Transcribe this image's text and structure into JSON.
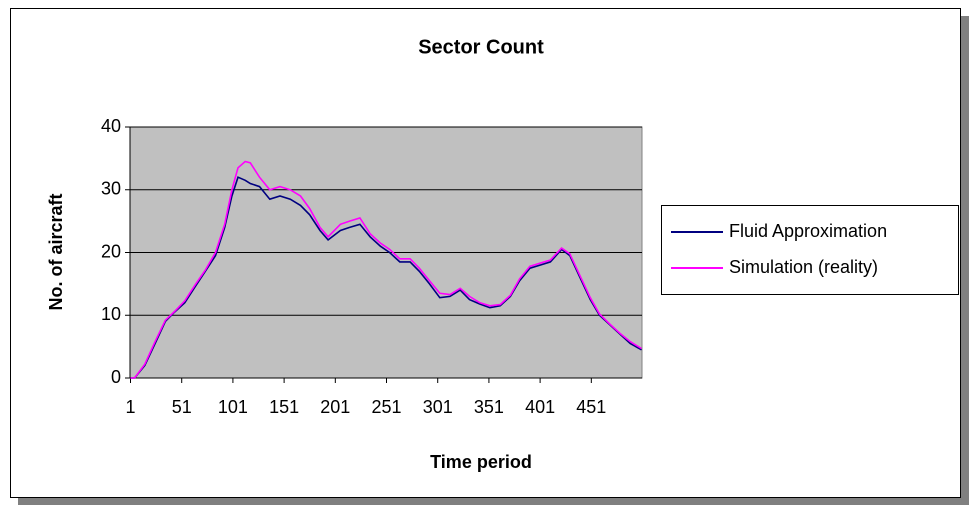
{
  "chart_data": {
    "type": "line",
    "title": "Sector Count",
    "x_label": "Time period",
    "y_label": "No. of aircraft",
    "x": [
      1,
      5,
      15,
      25,
      35,
      44,
      54,
      64,
      74,
      84,
      93,
      100,
      106,
      113,
      118,
      127,
      137,
      147,
      157,
      167,
      176,
      186,
      194,
      206,
      215,
      225,
      235,
      245,
      254,
      264,
      274,
      283,
      293,
      303,
      313,
      323,
      332,
      342,
      352,
      362,
      372,
      381,
      391,
      401,
      411,
      422,
      430,
      440,
      450,
      459,
      469,
      479,
      489,
      500
    ],
    "series": [
      {
        "name": "Fluid Approximation",
        "color": "#000080",
        "values": [
          0,
          0,
          2,
          5.5,
          9,
          10.5,
          12,
          14.5,
          17,
          19.5,
          24,
          29,
          32,
          31.5,
          31,
          30.5,
          28.5,
          29,
          28.5,
          27.5,
          26,
          23.5,
          22,
          23.5,
          24,
          24.5,
          22.5,
          21,
          20,
          18.5,
          18.5,
          17,
          15,
          12.8,
          13,
          14,
          12.5,
          11.8,
          11.2,
          11.5,
          13,
          15.5,
          17.5,
          18,
          18.5,
          20.5,
          19.5,
          16,
          12.5,
          10,
          8.5,
          7,
          5.5,
          4.5
        ]
      },
      {
        "name": "Simulation (reality)",
        "color": "#ff00ff",
        "values": [
          0,
          0,
          2.2,
          5.8,
          9.2,
          10.6,
          12.3,
          14.8,
          17.2,
          20,
          24.5,
          30,
          33.5,
          34.5,
          34.3,
          32,
          30,
          30.5,
          30,
          29,
          27,
          24,
          22.5,
          24.5,
          25,
          25.5,
          23,
          21.5,
          20.5,
          19,
          19,
          17.5,
          15.5,
          13.5,
          13.3,
          14.3,
          13,
          12,
          11.5,
          11.7,
          13.2,
          15.8,
          17.8,
          18.3,
          18.8,
          20.7,
          19.8,
          16.3,
          12.8,
          10.2,
          8.6,
          7.1,
          5.8,
          4.7
        ]
      }
    ],
    "xlim": [
      0.5,
      500.5
    ],
    "xticks": [
      1,
      51,
      101,
      151,
      201,
      251,
      301,
      351,
      401,
      451
    ],
    "ylim": [
      0,
      40
    ],
    "yticks": [
      0,
      10,
      20,
      30,
      40
    ],
    "grid": true,
    "legend": "right"
  }
}
